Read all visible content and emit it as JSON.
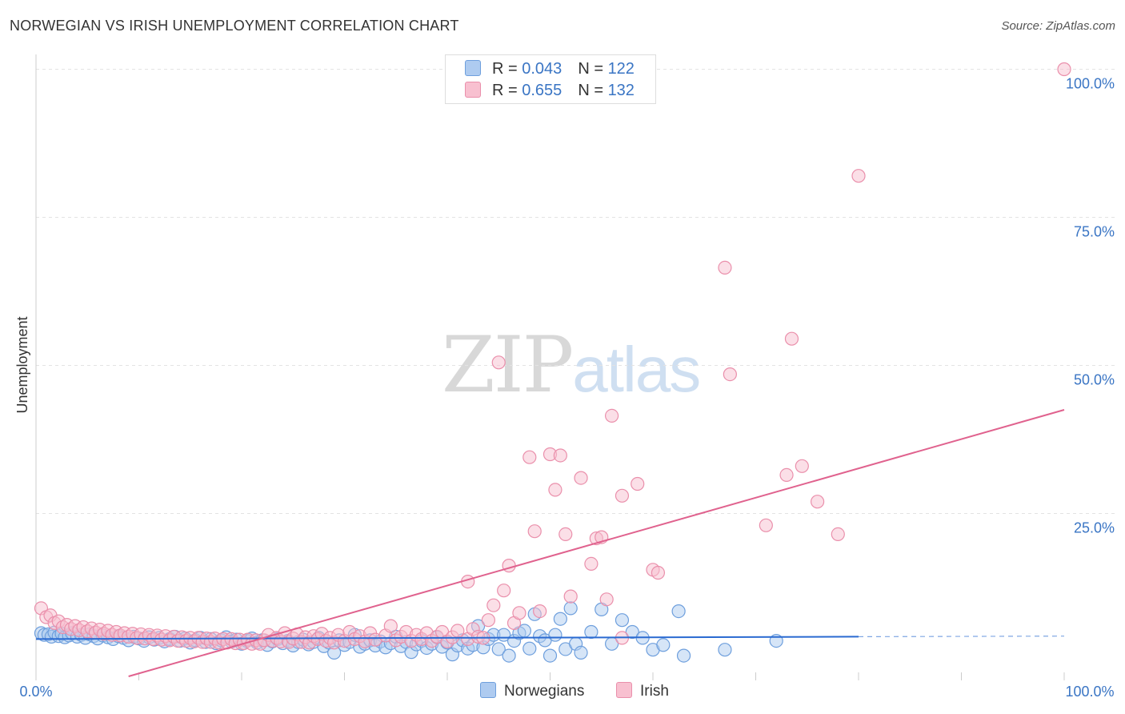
{
  "title": "NORWEGIAN VS IRISH UNEMPLOYMENT CORRELATION CHART",
  "source": "Source: ZipAtlas.com",
  "watermark": {
    "part1": "ZIP",
    "part2": "atlas"
  },
  "legend": {
    "rows": [
      {
        "r_label": "R =",
        "r_value": "0.043",
        "n_label": "N =",
        "n_value": "122",
        "color": "#aecbf0",
        "border": "#7aaae0"
      },
      {
        "r_label": "R =",
        "r_value": "0.655",
        "n_label": "N =",
        "n_value": "132",
        "color": "#f8c0d0",
        "border": "#ee93ae"
      }
    ]
  },
  "colors": {
    "blue_fill": "#aecbf0",
    "blue_stroke": "#6e9fdd",
    "blue_line": "#2a6ad1",
    "pink_fill": "#f8c0d0",
    "pink_stroke": "#ea8fab",
    "pink_line": "#e0628e",
    "grid": "#e3e3e3",
    "axis_label": "#3a75c4"
  },
  "chart_data": {
    "type": "scatter",
    "title": "NORWEGIAN VS IRISH UNEMPLOYMENT CORRELATION CHART",
    "xlabel": "",
    "ylabel": "Unemployment",
    "xlim": [
      0,
      100
    ],
    "ylim": [
      -2.5,
      102.5
    ],
    "x_tick_labels": [
      "0.0%",
      "100.0%"
    ],
    "y_ticks": [
      25,
      50,
      75,
      100
    ],
    "y_tick_labels": [
      "25.0%",
      "50.0%",
      "75.0%",
      "100.0%"
    ],
    "grid": true,
    "legend_position": "bottom",
    "series": [
      {
        "name": "Norwegians",
        "R": 0.043,
        "N": 122,
        "trend": {
          "x0": 0,
          "y0": 3.8,
          "x1": 80,
          "y1": 4.2,
          "dashed_to_x": 100,
          "dashed_to_y": 4.3
        },
        "points": [
          [
            0.5,
            4.8
          ],
          [
            0.8,
            4.5
          ],
          [
            1.2,
            4.6
          ],
          [
            1.5,
            4.2
          ],
          [
            1.8,
            4.9
          ],
          [
            2.2,
            4.3
          ],
          [
            2.5,
            4.7
          ],
          [
            2.8,
            4.1
          ],
          [
            3.2,
            4.4
          ],
          [
            3.5,
            4.8
          ],
          [
            4.0,
            4.2
          ],
          [
            4.4,
            4.5
          ],
          [
            4.8,
            4.0
          ],
          [
            5.2,
            4.6
          ],
          [
            5.6,
            4.3
          ],
          [
            6.0,
            3.9
          ],
          [
            6.5,
            4.4
          ],
          [
            7.0,
            4.1
          ],
          [
            7.5,
            3.8
          ],
          [
            8.0,
            4.3
          ],
          [
            8.5,
            4.0
          ],
          [
            9.0,
            3.6
          ],
          [
            9.5,
            4.2
          ],
          [
            10.0,
            3.9
          ],
          [
            10.5,
            3.5
          ],
          [
            11.0,
            4.1
          ],
          [
            11.5,
            3.7
          ],
          [
            12.0,
            4.0
          ],
          [
            12.5,
            3.4
          ],
          [
            13.0,
            3.8
          ],
          [
            13.5,
            4.2
          ],
          [
            14.0,
            3.5
          ],
          [
            14.5,
            3.9
          ],
          [
            15.0,
            3.2
          ],
          [
            15.5,
            3.6
          ],
          [
            16.0,
            4.0
          ],
          [
            16.5,
            3.3
          ],
          [
            17.0,
            3.8
          ],
          [
            17.5,
            3.1
          ],
          [
            18.0,
            3.6
          ],
          [
            18.5,
            4.1
          ],
          [
            19.0,
            3.4
          ],
          [
            19.5,
            3.7
          ],
          [
            20.0,
            3.0
          ],
          [
            20.5,
            3.5
          ],
          [
            21.0,
            3.9
          ],
          [
            21.5,
            3.2
          ],
          [
            22.0,
            3.6
          ],
          [
            22.5,
            2.8
          ],
          [
            23.0,
            3.4
          ],
          [
            23.5,
            3.8
          ],
          [
            24.0,
            3.1
          ],
          [
            24.5,
            3.5
          ],
          [
            25.0,
            2.7
          ],
          [
            25.5,
            3.3
          ],
          [
            26.0,
            3.7
          ],
          [
            26.5,
            2.9
          ],
          [
            27.0,
            3.3
          ],
          [
            27.5,
            4.0
          ],
          [
            28.0,
            2.6
          ],
          [
            28.5,
            3.2
          ],
          [
            29.0,
            1.5
          ],
          [
            29.5,
            3.6
          ],
          [
            30.0,
            2.8
          ],
          [
            30.5,
            3.3
          ],
          [
            31.0,
            4.5
          ],
          [
            31.5,
            2.5
          ],
          [
            32.0,
            3.0
          ],
          [
            32.5,
            3.6
          ],
          [
            33.0,
            2.7
          ],
          [
            33.5,
            3.4
          ],
          [
            34.0,
            2.4
          ],
          [
            34.5,
            3.1
          ],
          [
            35.0,
            4.2
          ],
          [
            35.5,
            2.6
          ],
          [
            36.0,
            3.3
          ],
          [
            36.5,
            1.6
          ],
          [
            37.0,
            2.9
          ],
          [
            37.5,
            3.5
          ],
          [
            38.0,
            2.3
          ],
          [
            38.5,
            3.0
          ],
          [
            39.0,
            4.1
          ],
          [
            39.5,
            2.5
          ],
          [
            40.0,
            3.2
          ],
          [
            40.5,
            1.2
          ],
          [
            41.0,
            2.7
          ],
          [
            41.5,
            3.6
          ],
          [
            42.0,
            2.2
          ],
          [
            42.5,
            2.8
          ],
          [
            43.0,
            6.0
          ],
          [
            43.5,
            2.4
          ],
          [
            44.0,
            3.8
          ],
          [
            44.5,
            4.5
          ],
          [
            45.0,
            2.1
          ],
          [
            45.5,
            4.5
          ],
          [
            46.0,
            1.0
          ],
          [
            46.5,
            3.5
          ],
          [
            47.0,
            4.8
          ],
          [
            47.5,
            5.2
          ],
          [
            48.0,
            2.2
          ],
          [
            48.5,
            8.0
          ],
          [
            49.0,
            4.3
          ],
          [
            49.5,
            3.6
          ],
          [
            50.0,
            1.0
          ],
          [
            50.5,
            4.5
          ],
          [
            51.0,
            7.2
          ],
          [
            51.5,
            2.1
          ],
          [
            52.0,
            9.0
          ],
          [
            52.5,
            3.0
          ],
          [
            53.0,
            1.5
          ],
          [
            54.0,
            5.0
          ],
          [
            55.0,
            8.8
          ],
          [
            56.0,
            3.0
          ],
          [
            57.0,
            7.0
          ],
          [
            58.0,
            5.0
          ],
          [
            59.0,
            4.0
          ],
          [
            60.0,
            2.0
          ],
          [
            61.0,
            2.8
          ],
          [
            62.5,
            8.5
          ],
          [
            63.0,
            1.0
          ],
          [
            67.0,
            2.0
          ],
          [
            72.0,
            3.5
          ]
        ]
      },
      {
        "name": "Irish",
        "R": 0.655,
        "N": 132,
        "trend": {
          "x0": 9,
          "y0": -2.5,
          "x1": 100,
          "y1": 42.5
        },
        "points": [
          [
            0.5,
            9.0
          ],
          [
            1.0,
            7.5
          ],
          [
            1.4,
            7.8
          ],
          [
            1.8,
            6.5
          ],
          [
            2.2,
            6.8
          ],
          [
            2.6,
            5.8
          ],
          [
            3.0,
            6.2
          ],
          [
            3.4,
            5.5
          ],
          [
            3.8,
            6.0
          ],
          [
            4.2,
            5.3
          ],
          [
            4.6,
            5.8
          ],
          [
            5.0,
            5.1
          ],
          [
            5.4,
            5.6
          ],
          [
            5.8,
            4.9
          ],
          [
            6.2,
            5.4
          ],
          [
            6.6,
            4.7
          ],
          [
            7.0,
            5.2
          ],
          [
            7.4,
            4.5
          ],
          [
            7.8,
            5.0
          ],
          [
            8.2,
            4.4
          ],
          [
            8.6,
            4.8
          ],
          [
            9.0,
            4.2
          ],
          [
            9.4,
            4.7
          ],
          [
            9.8,
            4.0
          ],
          [
            10.2,
            4.6
          ],
          [
            10.6,
            3.9
          ],
          [
            11.0,
            4.5
          ],
          [
            11.4,
            3.8
          ],
          [
            11.8,
            4.4
          ],
          [
            12.2,
            3.7
          ],
          [
            12.6,
            4.3
          ],
          [
            13.0,
            3.6
          ],
          [
            13.4,
            4.2
          ],
          [
            13.8,
            3.5
          ],
          [
            14.2,
            4.1
          ],
          [
            14.6,
            3.5
          ],
          [
            15.0,
            4.0
          ],
          [
            15.4,
            3.4
          ],
          [
            15.8,
            4.0
          ],
          [
            16.2,
            3.3
          ],
          [
            16.6,
            3.9
          ],
          [
            17.0,
            3.3
          ],
          [
            17.4,
            3.9
          ],
          [
            17.8,
            3.2
          ],
          [
            18.2,
            3.8
          ],
          [
            18.6,
            3.2
          ],
          [
            19.0,
            3.8
          ],
          [
            19.4,
            3.1
          ],
          [
            19.8,
            3.7
          ],
          [
            20.2,
            3.1
          ],
          [
            20.6,
            3.7
          ],
          [
            21.0,
            3.0
          ],
          [
            21.4,
            3.6
          ],
          [
            21.8,
            3.0
          ],
          [
            22.2,
            3.6
          ],
          [
            22.6,
            4.5
          ],
          [
            23.0,
            3.5
          ],
          [
            23.4,
            4.0
          ],
          [
            23.8,
            3.4
          ],
          [
            24.2,
            4.8
          ],
          [
            24.6,
            3.3
          ],
          [
            25.0,
            3.9
          ],
          [
            25.4,
            4.6
          ],
          [
            25.8,
            3.3
          ],
          [
            26.2,
            4.1
          ],
          [
            26.6,
            3.2
          ],
          [
            27.0,
            4.3
          ],
          [
            27.4,
            3.8
          ],
          [
            27.8,
            4.7
          ],
          [
            28.2,
            3.5
          ],
          [
            28.6,
            4.0
          ],
          [
            29.0,
            3.2
          ],
          [
            29.4,
            4.5
          ],
          [
            30.0,
            3.5
          ],
          [
            30.5,
            5.0
          ],
          [
            31.0,
            3.8
          ],
          [
            31.5,
            4.3
          ],
          [
            32.0,
            3.4
          ],
          [
            32.5,
            4.8
          ],
          [
            33.0,
            3.7
          ],
          [
            34.0,
            4.4
          ],
          [
            34.5,
            6.0
          ],
          [
            35.0,
            3.6
          ],
          [
            35.5,
            4.2
          ],
          [
            36.0,
            5.0
          ],
          [
            36.5,
            3.5
          ],
          [
            37.0,
            4.5
          ],
          [
            37.5,
            3.8
          ],
          [
            38.0,
            4.8
          ],
          [
            38.5,
            3.5
          ],
          [
            39.0,
            4.2
          ],
          [
            39.5,
            5.0
          ],
          [
            40.0,
            3.4
          ],
          [
            40.5,
            4.1
          ],
          [
            41.0,
            5.2
          ],
          [
            42.0,
            3.8
          ],
          [
            42.5,
            5.5
          ],
          [
            43.0,
            4.2
          ],
          [
            43.5,
            4.0
          ],
          [
            44.0,
            7.0
          ],
          [
            44.5,
            9.5
          ],
          [
            45.0,
            50.5
          ],
          [
            45.5,
            12.0
          ],
          [
            46.0,
            16.2
          ],
          [
            46.5,
            6.5
          ],
          [
            47.0,
            8.2
          ],
          [
            48.0,
            34.5
          ],
          [
            48.5,
            22.0
          ],
          [
            49.0,
            8.5
          ],
          [
            50.0,
            35.0
          ],
          [
            50.5,
            29.0
          ],
          [
            51.0,
            34.8
          ],
          [
            51.5,
            21.5
          ],
          [
            52.0,
            11.0
          ],
          [
            53.0,
            31.0
          ],
          [
            54.0,
            16.5
          ],
          [
            54.5,
            20.8
          ],
          [
            55.0,
            21.0
          ],
          [
            55.5,
            10.5
          ],
          [
            56.0,
            41.5
          ],
          [
            57.0,
            28.0
          ],
          [
            58.5,
            30.0
          ],
          [
            60.0,
            15.5
          ],
          [
            60.5,
            15.0
          ],
          [
            67.0,
            66.5
          ],
          [
            67.5,
            48.5
          ],
          [
            71.0,
            23.0
          ],
          [
            73.0,
            31.5
          ],
          [
            73.5,
            54.5
          ],
          [
            74.5,
            33.0
          ],
          [
            76.0,
            27.0
          ],
          [
            78.0,
            21.5
          ],
          [
            80.0,
            82.0
          ],
          [
            100.0,
            100.0
          ],
          [
            42.0,
            13.5
          ],
          [
            57.0,
            4.0
          ]
        ]
      }
    ]
  }
}
